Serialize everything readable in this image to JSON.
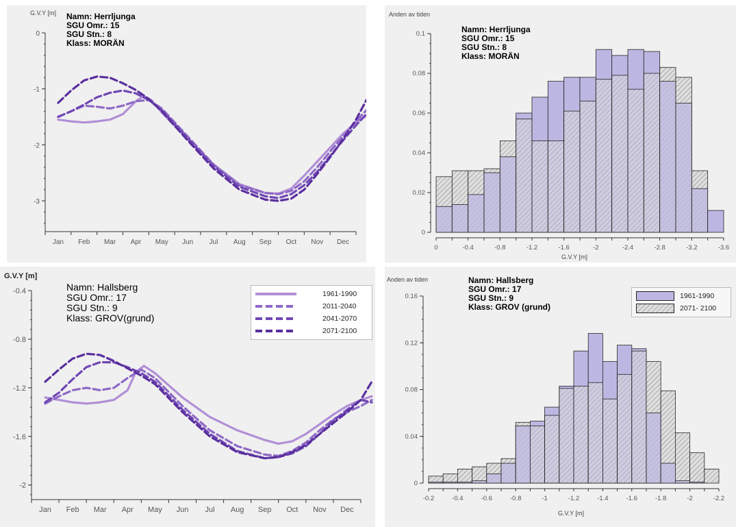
{
  "colors": {
    "panel_bg": "#f0f0f0",
    "axis": "#333333",
    "line_1961_1990": "#b18fd6",
    "line_2011_2040": "#8e69c6",
    "line_2041_2070": "#6f47b4",
    "line_2071_2100": "#5a2f9e",
    "bar_1961_1990_fill": "#bcb7e2",
    "bar_2071_2100_fill": "#dedede",
    "bar_edge": "#222222",
    "hatch": "#777777"
  },
  "chart_data": [
    {
      "type": "line",
      "ylabel": "G.V.Y [m]",
      "categories": [
        "Jan",
        "Feb",
        "Mar",
        "Apr",
        "May",
        "Jun",
        "Jul",
        "Aug",
        "Sep",
        "Oct",
        "Nov",
        "Dec"
      ],
      "ylim": [
        -3.55,
        0
      ],
      "yticks": [
        0,
        -1,
        -2,
        -3
      ],
      "info": [
        "Namn: Herrljunga",
        "SGU Omr.: 15",
        "SGU Stn.: 8",
        "Klass: MORÄN"
      ],
      "series": [
        {
          "name": "1961-1990",
          "style": "solid",
          "x": [
            0,
            0.5,
            1,
            1.5,
            2,
            2.5,
            3,
            3.3,
            3.6,
            4,
            5,
            6,
            7,
            8,
            8.5,
            9,
            9.5,
            10,
            10.5,
            11,
            11.5,
            11.9
          ],
          "values": [
            -1.55,
            -1.58,
            -1.6,
            -1.58,
            -1.55,
            -1.45,
            -1.22,
            -1.13,
            -1.2,
            -1.42,
            -1.9,
            -2.35,
            -2.7,
            -2.86,
            -2.87,
            -2.78,
            -2.55,
            -2.3,
            -2.05,
            -1.8,
            -1.6,
            -1.48
          ]
        },
        {
          "name": "2011-2040",
          "style": "dashed",
          "x": [
            0,
            0.5,
            1,
            1.5,
            2,
            2.5,
            3,
            3.5,
            4,
            5,
            6,
            7,
            8,
            8.5,
            9,
            9.5,
            10,
            10.5,
            11,
            11.5,
            11.9
          ],
          "values": [
            -1.5,
            -1.4,
            -1.3,
            -1.32,
            -1.35,
            -1.3,
            -1.22,
            -1.2,
            -1.35,
            -1.85,
            -2.35,
            -2.72,
            -2.86,
            -2.88,
            -2.82,
            -2.65,
            -2.4,
            -2.12,
            -1.85,
            -1.58,
            -1.38
          ]
        },
        {
          "name": "2041-2070",
          "style": "dashed",
          "x": [
            0,
            0.5,
            1,
            1.5,
            2,
            2.5,
            3,
            3.5,
            4,
            5,
            6,
            7,
            8,
            8.5,
            9,
            9.5,
            10,
            10.5,
            11,
            11.5,
            11.9
          ],
          "values": [
            -1.5,
            -1.4,
            -1.28,
            -1.15,
            -1.07,
            -1.03,
            -1.08,
            -1.2,
            -1.38,
            -1.88,
            -2.38,
            -2.75,
            -2.92,
            -2.95,
            -2.88,
            -2.72,
            -2.48,
            -2.2,
            -1.92,
            -1.65,
            -1.45
          ]
        },
        {
          "name": "2071-2100",
          "style": "dashed",
          "x": [
            0,
            0.5,
            1,
            1.5,
            2,
            2.5,
            3,
            3.5,
            4,
            5,
            6,
            7,
            8,
            8.5,
            9,
            9.5,
            10,
            10.5,
            11,
            11.5,
            11.9
          ],
          "values": [
            -1.25,
            -1.03,
            -0.85,
            -0.78,
            -0.8,
            -0.9,
            -1.02,
            -1.18,
            -1.4,
            -1.92,
            -2.42,
            -2.8,
            -2.98,
            -3.0,
            -2.96,
            -2.8,
            -2.52,
            -2.22,
            -1.9,
            -1.55,
            -1.2
          ]
        }
      ]
    },
    {
      "type": "bar",
      "ylabel": "Anden av tiden",
      "xlabel": "G.V.Y [m]",
      "bin_width": -0.2,
      "bin_start": 0,
      "xticks": [
        "0",
        "-0.4",
        "-0.8",
        "-1.2",
        "-1.6",
        "-2",
        "-2.4",
        "-2.8",
        "-3.2",
        "-3.6"
      ],
      "ylim": [
        0,
        0.1
      ],
      "yticks": [
        "0",
        "0.02",
        "0.04",
        "0.06",
        "0.08",
        "0.1"
      ],
      "info": [
        "Namn: Herrljunga",
        "SGU Omr.: 15",
        "SGU Stn.: 8",
        "Klass: MORÄN"
      ],
      "series": [
        {
          "name": "1961-1990",
          "values": [
            0.013,
            0.014,
            0.019,
            0.03,
            0.038,
            0.06,
            0.068,
            0.076,
            0.078,
            0.078,
            0.092,
            0.089,
            0.092,
            0.091,
            0.076,
            0.065,
            0.022,
            0.011
          ]
        },
        {
          "name": "2071-2100",
          "values": [
            0.028,
            0.031,
            0.031,
            0.032,
            0.046,
            0.057,
            0.046,
            0.046,
            0.061,
            0.066,
            0.077,
            0.079,
            0.072,
            0.08,
            0.083,
            0.078,
            0.031,
            0.0
          ]
        }
      ]
    },
    {
      "type": "line",
      "ylabel": "G.V.Y [m]",
      "categories": [
        "Jan",
        "Feb",
        "Mar",
        "Apr",
        "May",
        "Jun",
        "Jul",
        "Aug",
        "Sep",
        "Oct",
        "Nov",
        "Dec"
      ],
      "ylim": [
        -2.12,
        -0.4
      ],
      "yticks": [
        -0.4,
        -0.8,
        -1.2,
        -1.6,
        -2
      ],
      "info": [
        "Namn: Hallsberg",
        "SGU Omr.: 17",
        "SGU Stn.: 9",
        "Klass: GROV(grund)"
      ],
      "legend": [
        "1961-1990",
        "2011-2040",
        "2041-2070",
        "2071-2100"
      ],
      "series": [
        {
          "name": "1961-1990",
          "style": "solid",
          "x": [
            0,
            0.5,
            1,
            1.5,
            2,
            2.5,
            3,
            3.3,
            3.6,
            4,
            5,
            6,
            7,
            8,
            8.5,
            9,
            9.5,
            10,
            10.5,
            11,
            11.5,
            11.9
          ],
          "values": [
            -1.28,
            -1.3,
            -1.32,
            -1.33,
            -1.32,
            -1.3,
            -1.22,
            -1.07,
            -1.02,
            -1.08,
            -1.28,
            -1.44,
            -1.55,
            -1.63,
            -1.66,
            -1.64,
            -1.58,
            -1.5,
            -1.42,
            -1.35,
            -1.3,
            -1.27
          ]
        },
        {
          "name": "2011-2040",
          "style": "dashed",
          "x": [
            0,
            0.5,
            1,
            1.5,
            2,
            2.5,
            3,
            3.5,
            4,
            5,
            6,
            7,
            8,
            8.5,
            9,
            9.5,
            10,
            10.5,
            11,
            11.5,
            11.9
          ],
          "values": [
            -1.33,
            -1.27,
            -1.22,
            -1.2,
            -1.22,
            -1.2,
            -1.12,
            -1.05,
            -1.12,
            -1.35,
            -1.55,
            -1.68,
            -1.75,
            -1.76,
            -1.72,
            -1.65,
            -1.55,
            -1.46,
            -1.4,
            -1.35,
            -1.3
          ]
        },
        {
          "name": "2041-2070",
          "style": "dashed",
          "x": [
            0,
            0.5,
            1,
            1.5,
            2,
            2.5,
            3,
            3.5,
            4,
            5,
            6,
            7,
            8,
            8.5,
            9,
            9.5,
            10,
            10.5,
            11,
            11.5,
            11.9
          ],
          "values": [
            -1.32,
            -1.24,
            -1.13,
            -1.03,
            -0.99,
            -0.99,
            -1.03,
            -1.08,
            -1.15,
            -1.38,
            -1.58,
            -1.72,
            -1.78,
            -1.77,
            -1.74,
            -1.68,
            -1.58,
            -1.47,
            -1.38,
            -1.3,
            -1.32
          ]
        },
        {
          "name": "2071-2100",
          "style": "dashed",
          "x": [
            0,
            0.5,
            1,
            1.5,
            2,
            2.5,
            3,
            3.5,
            4,
            5,
            6,
            7,
            8,
            8.5,
            9,
            9.5,
            10,
            10.5,
            11,
            11.5,
            11.9
          ],
          "values": [
            -1.15,
            -1.05,
            -0.96,
            -0.92,
            -0.93,
            -0.98,
            -1.04,
            -1.1,
            -1.17,
            -1.4,
            -1.6,
            -1.73,
            -1.78,
            -1.77,
            -1.73,
            -1.67,
            -1.58,
            -1.49,
            -1.4,
            -1.3,
            -1.15
          ]
        }
      ]
    },
    {
      "type": "bar",
      "ylabel": "Anden av tiden",
      "xlabel": "G.V.Y [m]",
      "bin_width": -0.1,
      "bin_start": -0.2,
      "xticks": [
        "-0.2",
        "-0.4",
        "-0.6",
        "-0.8",
        "-1",
        "-1.2",
        "-1.4",
        "-1.6",
        "-1.8",
        "-2",
        "-2.2"
      ],
      "ylim": [
        0,
        0.16
      ],
      "yticks": [
        "0",
        "0.04",
        "0.08",
        "0.12",
        "0.16"
      ],
      "info": [
        "Namn: Hallsberg",
        "SGU Omr.: 17",
        "SGU Stn.: 9",
        "Klass: GROV (grund)"
      ],
      "legend": [
        "1961-1990",
        "2071- 2100"
      ],
      "series": [
        {
          "name": "1961-1990",
          "values": [
            0.001,
            0.001,
            0.001,
            0.002,
            0.008,
            0.017,
            0.049,
            0.053,
            0.065,
            0.083,
            0.113,
            0.128,
            0.104,
            0.118,
            0.115,
            0.06,
            0.017,
            0.002,
            0.001
          ]
        },
        {
          "name": "2071-2100",
          "values": [
            0.006,
            0.008,
            0.012,
            0.014,
            0.017,
            0.021,
            0.052,
            0.049,
            0.058,
            0.081,
            0.083,
            0.086,
            0.072,
            0.093,
            0.113,
            0.104,
            0.079,
            0.043,
            0.026,
            0.012
          ]
        }
      ]
    }
  ]
}
